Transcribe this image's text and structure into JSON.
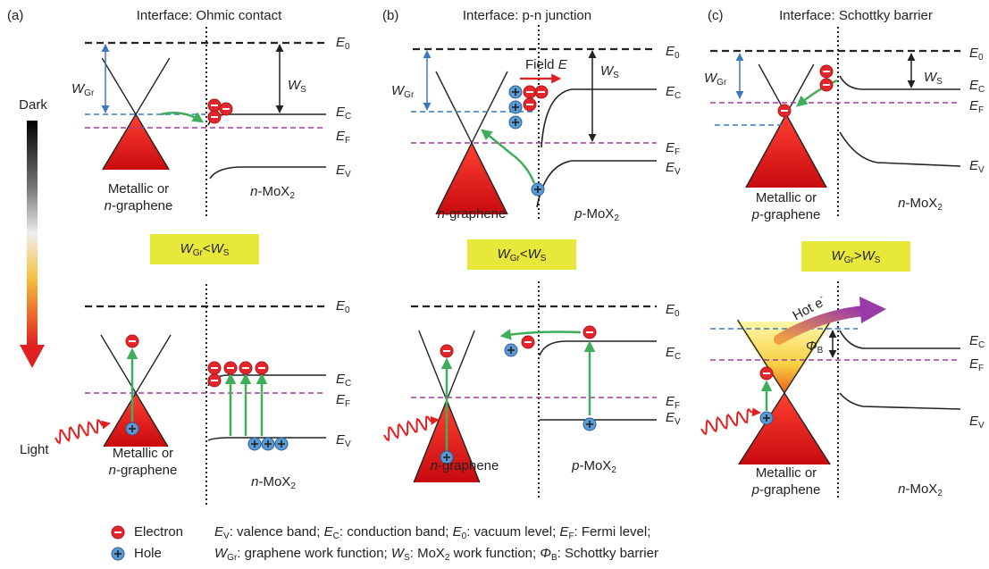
{
  "symbols": {
    "E0": [
      {
        "text": "E",
        "style": "italic"
      },
      {
        "text": "0",
        "style": "sub"
      }
    ],
    "EC": [
      {
        "text": "E",
        "style": "italic"
      },
      {
        "text": "C",
        "style": "sub"
      }
    ],
    "EF": [
      {
        "text": "E",
        "style": "italic"
      },
      {
        "text": "F",
        "style": "sub"
      }
    ],
    "EV": [
      {
        "text": "E",
        "style": "italic"
      },
      {
        "text": "V",
        "style": "sub"
      }
    ],
    "WGr": [
      {
        "text": "W",
        "style": "italic"
      },
      {
        "text": "Gr",
        "style": "sub"
      }
    ],
    "WS": [
      {
        "text": "W",
        "style": "italic"
      },
      {
        "text": "S",
        "style": "sub"
      }
    ],
    "PhiB": [
      {
        "text": "Φ",
        "style": "italic"
      },
      {
        "text": "B",
        "style": "sub"
      }
    ]
  },
  "side": {
    "dark": "Dark",
    "light": "Light"
  },
  "panels": [
    {
      "tag": "(a)",
      "title": "Interface: Ohmic contact",
      "condition": [
        {
          "text": "W",
          "style": "italic"
        },
        {
          "text": "Gr",
          "style": "sub"
        },
        "<",
        {
          "text": "W",
          "style": "italic"
        },
        {
          "text": "S",
          "style": "sub"
        }
      ],
      "top": {
        "graphene": [
          [
            "Metallic or"
          ],
          [
            {
              "text": "n",
              "style": "italic"
            },
            "-graphene"
          ]
        ],
        "semiconductor": [
          {
            "text": "n",
            "style": "italic"
          },
          "-MoX",
          {
            "text": "2",
            "style": "sub"
          }
        ]
      },
      "bottom": {
        "graphene": [
          [
            "Metallic or"
          ],
          [
            {
              "text": "n",
              "style": "italic"
            },
            "-graphene"
          ]
        ],
        "semiconductor": [
          {
            "text": "n",
            "style": "italic"
          },
          "-MoX",
          {
            "text": "2",
            "style": "sub"
          }
        ]
      }
    },
    {
      "tag": "(b)",
      "title": "Interface: p-n junction",
      "condition": [
        {
          "text": "W",
          "style": "italic"
        },
        {
          "text": "Gr",
          "style": "sub"
        },
        "<",
        {
          "text": "W",
          "style": "italic"
        },
        {
          "text": "S",
          "style": "sub"
        }
      ],
      "top": {
        "graphene": [
          [
            {
              "text": "n",
              "style": "italic"
            },
            "-graphene"
          ]
        ],
        "semiconductor": [
          {
            "text": "p",
            "style": "italic"
          },
          "-MoX",
          {
            "text": "2",
            "style": "sub"
          }
        ],
        "field": [
          "Field ",
          {
            "text": "E",
            "style": "italic"
          }
        ]
      },
      "bottom": {
        "graphene": [
          [
            {
              "text": "n",
              "style": "italic"
            },
            "-graphene"
          ]
        ],
        "semiconductor": [
          {
            "text": "p",
            "style": "italic"
          },
          "-MoX",
          {
            "text": "2",
            "style": "sub"
          }
        ]
      }
    },
    {
      "tag": "(c)",
      "title": "Interface: Schottky barrier",
      "condition": [
        {
          "text": "W",
          "style": "italic"
        },
        {
          "text": "Gr",
          "style": "sub"
        },
        ">",
        {
          "text": "W",
          "style": "italic"
        },
        {
          "text": "S",
          "style": "sub"
        }
      ],
      "top": {
        "graphene": [
          [
            "Metallic or"
          ],
          [
            {
              "text": "p",
              "style": "italic"
            },
            "-graphene"
          ]
        ],
        "semiconductor": [
          {
            "text": "n",
            "style": "italic"
          },
          "-MoX",
          {
            "text": "2",
            "style": "sub"
          }
        ]
      },
      "bottom": {
        "graphene": [
          [
            "Metallic or"
          ],
          [
            {
              "text": "p",
              "style": "italic"
            },
            "-graphene"
          ]
        ],
        "semiconductor": [
          {
            "text": "n",
            "style": "italic"
          },
          "-MoX",
          {
            "text": "2",
            "style": "sub"
          }
        ],
        "hot_electron": [
          "Hot e",
          {
            "text": "-",
            "style": "sup"
          }
        ]
      }
    }
  ],
  "legend": {
    "electron": "Electron",
    "hole": "Hole",
    "line1": [
      {
        "text": "E",
        "style": "italic"
      },
      {
        "text": "V",
        "style": "sub"
      },
      ": valence band; ",
      {
        "text": "E",
        "style": "italic"
      },
      {
        "text": "C",
        "style": "sub"
      },
      ": conduction band; ",
      {
        "text": "E",
        "style": "italic"
      },
      {
        "text": "0",
        "style": "sub"
      },
      ": vacuum level; ",
      {
        "text": "E",
        "style": "italic"
      },
      {
        "text": "F",
        "style": "sub"
      },
      ": Fermi level;"
    ],
    "line2": [
      {
        "text": "W",
        "style": "italic"
      },
      {
        "text": "Gr",
        "style": "sub"
      },
      ": graphene work function; ",
      {
        "text": "W",
        "style": "italic"
      },
      {
        "text": "S",
        "style": "sub"
      },
      ": MoX",
      {
        "text": "2",
        "style": "sub"
      },
      " work function; ",
      {
        "text": "Φ",
        "style": "italic"
      },
      {
        "text": "B",
        "style": "sub"
      },
      ": Schottky barrier"
    ]
  }
}
